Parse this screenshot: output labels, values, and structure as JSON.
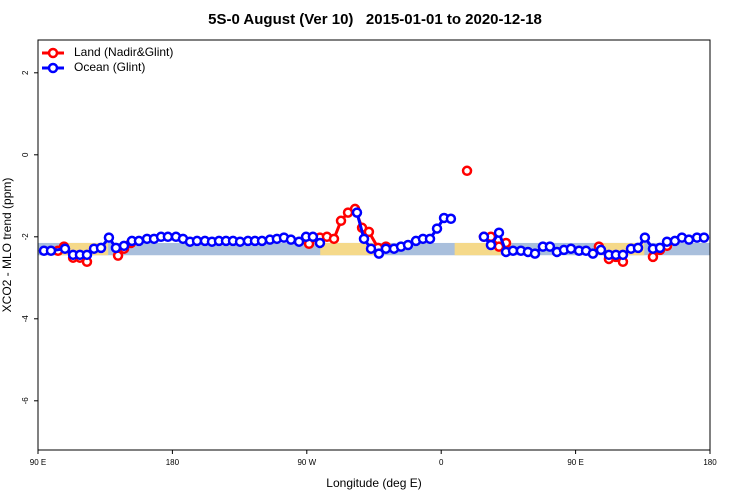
{
  "chart_data": {
    "type": "line",
    "title": "5S-0 August (Ver 10)   2015-01-01 to 2020-12-18",
    "xlabel": "Longitude (deg E)",
    "ylabel": "XCO2 - MLO trend (ppm)",
    "xlim": [
      90,
      540
    ],
    "xticks": [
      {
        "value": 90,
        "label": "90 E"
      },
      180,
      {
        "value": 270,
        "label": "90 W"
      },
      {
        "value": 360,
        "label": "0"
      },
      {
        "value": 450,
        "label": "90 E"
      },
      {
        "value": 540,
        "label": "180"
      }
    ],
    "ylim": [
      -7.2,
      2.8
    ],
    "yticks": [
      2,
      0,
      -2,
      -4,
      -6
    ],
    "legend": "top-left",
    "band": {
      "range": [
        -2.45,
        -2.15
      ],
      "color": "#a9bfdc",
      "land_color": "#f5d98a",
      "land_x": [
        [
          105,
          137
        ],
        [
          279,
          316
        ],
        [
          369,
          407
        ],
        [
          463,
          496
        ]
      ]
    },
    "series": [
      {
        "name": "Land (Nadir&Glint)",
        "color": "#ff0000",
        "x": [
          103.4,
          107.4,
          113.5,
          118.1,
          122.8,
          130,
          143.6,
          147.6,
          152.3,
          230,
          271.5,
          278.8,
          283.5,
          288.2,
          292.9,
          297.6,
          302.3,
          307.0,
          311.6,
          317.7,
          323.0,
          340,
          377.3,
          382,
          388.6,
          393.3,
          398.7,
          403.4,
          440,
          465.6,
          472.3,
          477.0,
          481.7,
          490,
          501.8,
          506.5,
          511.2
        ],
        "values": [
          -2.34,
          -2.24,
          -2.51,
          -2.51,
          -2.61,
          null,
          -2.46,
          -2.29,
          -2.15,
          null,
          -2.17,
          -2.02,
          -2.0,
          -2.05,
          -1.61,
          -1.41,
          -1.32,
          -1.78,
          -1.88,
          -2.27,
          -2.24,
          null,
          -0.39,
          null,
          -2.0,
          -2.0,
          -2.24,
          -2.15,
          null,
          -2.24,
          -2.54,
          -2.49,
          -2.61,
          null,
          -2.49,
          -2.32,
          -2.22
        ]
      },
      {
        "name": "Ocean (Glint)",
        "color": "#0000ff",
        "x": [
          94.0,
          98.7,
          108.1,
          113.5,
          118.1,
          122.8,
          127.5,
          132.2,
          137.5,
          142.2,
          147.6,
          152.9,
          157.6,
          163.0,
          167.7,
          172.4,
          177.0,
          182.4,
          187.1,
          191.8,
          196.5,
          201.8,
          206.5,
          211.2,
          215.9,
          220.6,
          225.3,
          230.6,
          235.3,
          240.0,
          245.3,
          250.0,
          254.7,
          259.4,
          264.8,
          269.5,
          274.1,
          278.8,
          300,
          303.6,
          308.3,
          313.0,
          318.3,
          323.0,
          328.4,
          333.1,
          337.8,
          343.1,
          347.8,
          352.5,
          357.2,
          361.9,
          366.5,
          380,
          388.6,
          393.3,
          398.7,
          403.4,
          408.1,
          413.4,
          418.1,
          422.8,
          428.1,
          432.8,
          437.5,
          442.2,
          446.9,
          452.3,
          457.0,
          461.6,
          467.0,
          472.3,
          477.0,
          481.7,
          487.1,
          491.8,
          496.4,
          501.8,
          506.5,
          511.2,
          516.5,
          521.2,
          525.9,
          531.3,
          536.0
        ],
        "values": [
          -2.34,
          -2.34,
          -2.29,
          -2.44,
          -2.44,
          -2.44,
          -2.29,
          -2.27,
          -2.02,
          -2.27,
          -2.22,
          -2.1,
          -2.1,
          -2.05,
          -2.05,
          -2.0,
          -2.0,
          -2.0,
          -2.05,
          -2.12,
          -2.1,
          -2.1,
          -2.12,
          -2.1,
          -2.1,
          -2.1,
          -2.12,
          -2.1,
          -2.1,
          -2.1,
          -2.07,
          -2.05,
          -2.02,
          -2.07,
          -2.12,
          -2.0,
          -2.0,
          -2.15,
          null,
          -1.41,
          -2.05,
          -2.29,
          -2.41,
          -2.29,
          -2.29,
          -2.24,
          -2.2,
          -2.1,
          -2.05,
          -2.05,
          -1.8,
          -1.54,
          -1.56,
          null,
          -2.0,
          -2.2,
          -1.9,
          -2.37,
          -2.34,
          -2.34,
          -2.37,
          -2.41,
          -2.24,
          -2.24,
          -2.37,
          -2.32,
          -2.29,
          -2.34,
          -2.34,
          -2.41,
          -2.32,
          -2.44,
          -2.44,
          -2.44,
          -2.29,
          -2.27,
          -2.02,
          -2.29,
          -2.27,
          -2.12,
          -2.1,
          -2.02,
          -2.07,
          -2.02,
          -2.02
        ]
      }
    ]
  }
}
